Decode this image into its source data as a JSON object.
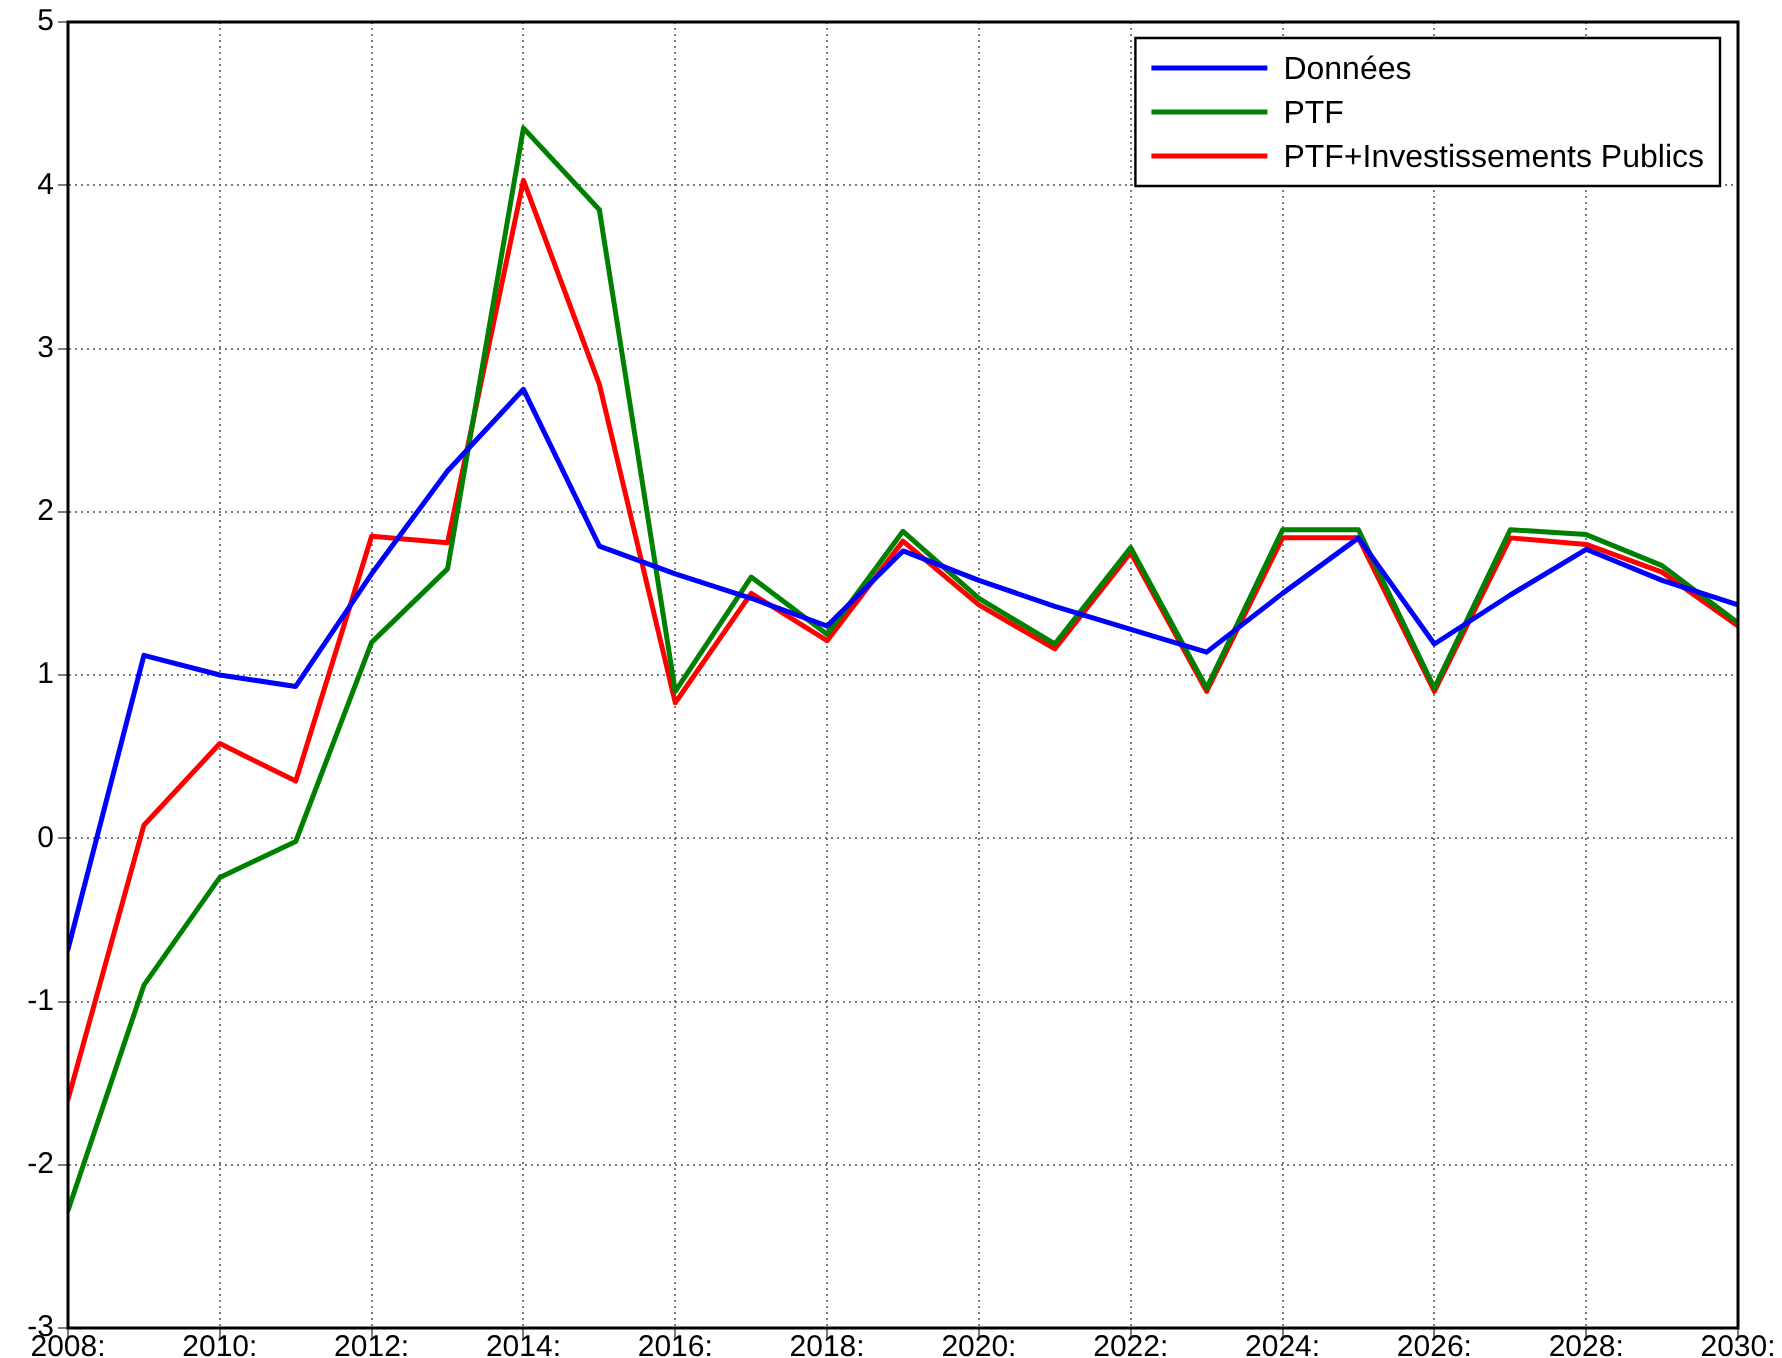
{
  "chart_data": {
    "type": "line",
    "x": [
      2008,
      2009,
      2010,
      2011,
      2012,
      2013,
      2014,
      2015,
      2016,
      2017,
      2018,
      2019,
      2020,
      2021,
      2022,
      2023,
      2024,
      2025,
      2026,
      2027,
      2028,
      2029,
      2030
    ],
    "series": [
      {
        "name": "Données",
        "color": "#0000ff",
        "values": [
          -0.68,
          1.12,
          1.0,
          0.93,
          1.62,
          2.25,
          2.75,
          1.79,
          1.62,
          1.47,
          1.3,
          1.76,
          1.58,
          1.42,
          1.28,
          1.14,
          1.5,
          1.84,
          1.19,
          1.49,
          1.77,
          1.58,
          1.43
        ]
      },
      {
        "name": "PTF",
        "color": "#008000",
        "values": [
          -2.28,
          -0.9,
          -0.24,
          -0.02,
          1.2,
          1.65,
          4.35,
          3.85,
          0.9,
          1.6,
          1.25,
          1.88,
          1.47,
          1.19,
          1.78,
          0.92,
          1.89,
          1.89,
          0.92,
          1.89,
          1.86,
          1.67,
          1.32
        ]
      },
      {
        "name": "PTF+Investissements Publics",
        "color": "#ff0000",
        "values": [
          -1.6,
          0.08,
          0.58,
          0.35,
          1.85,
          1.81,
          4.03,
          2.78,
          0.83,
          1.5,
          1.21,
          1.82,
          1.43,
          1.16,
          1.75,
          0.9,
          1.84,
          1.84,
          0.9,
          1.84,
          1.8,
          1.63,
          1.3
        ]
      }
    ],
    "xlim": [
      2008,
      2030
    ],
    "xticks": [
      {
        "value": 2008,
        "label": "2008:"
      },
      {
        "value": 2010,
        "label": "2010:"
      },
      {
        "value": 2012,
        "label": "2012:"
      },
      {
        "value": 2014,
        "label": "2014:"
      },
      {
        "value": 2016,
        "label": "2016:"
      },
      {
        "value": 2018,
        "label": "2018:"
      },
      {
        "value": 2020,
        "label": "2020:"
      },
      {
        "value": 2022,
        "label": "2022:"
      },
      {
        "value": 2024,
        "label": "2024:"
      },
      {
        "value": 2026,
        "label": "2026:"
      },
      {
        "value": 2028,
        "label": "2028:"
      },
      {
        "value": 2030,
        "label": "2030:"
      }
    ],
    "ylim": [
      -3,
      5
    ],
    "yticks": [
      -3,
      -2,
      -1,
      0,
      1,
      2,
      3,
      4,
      5
    ],
    "grid": true,
    "legend": "top right",
    "marker": "none",
    "line_style": "solid"
  }
}
